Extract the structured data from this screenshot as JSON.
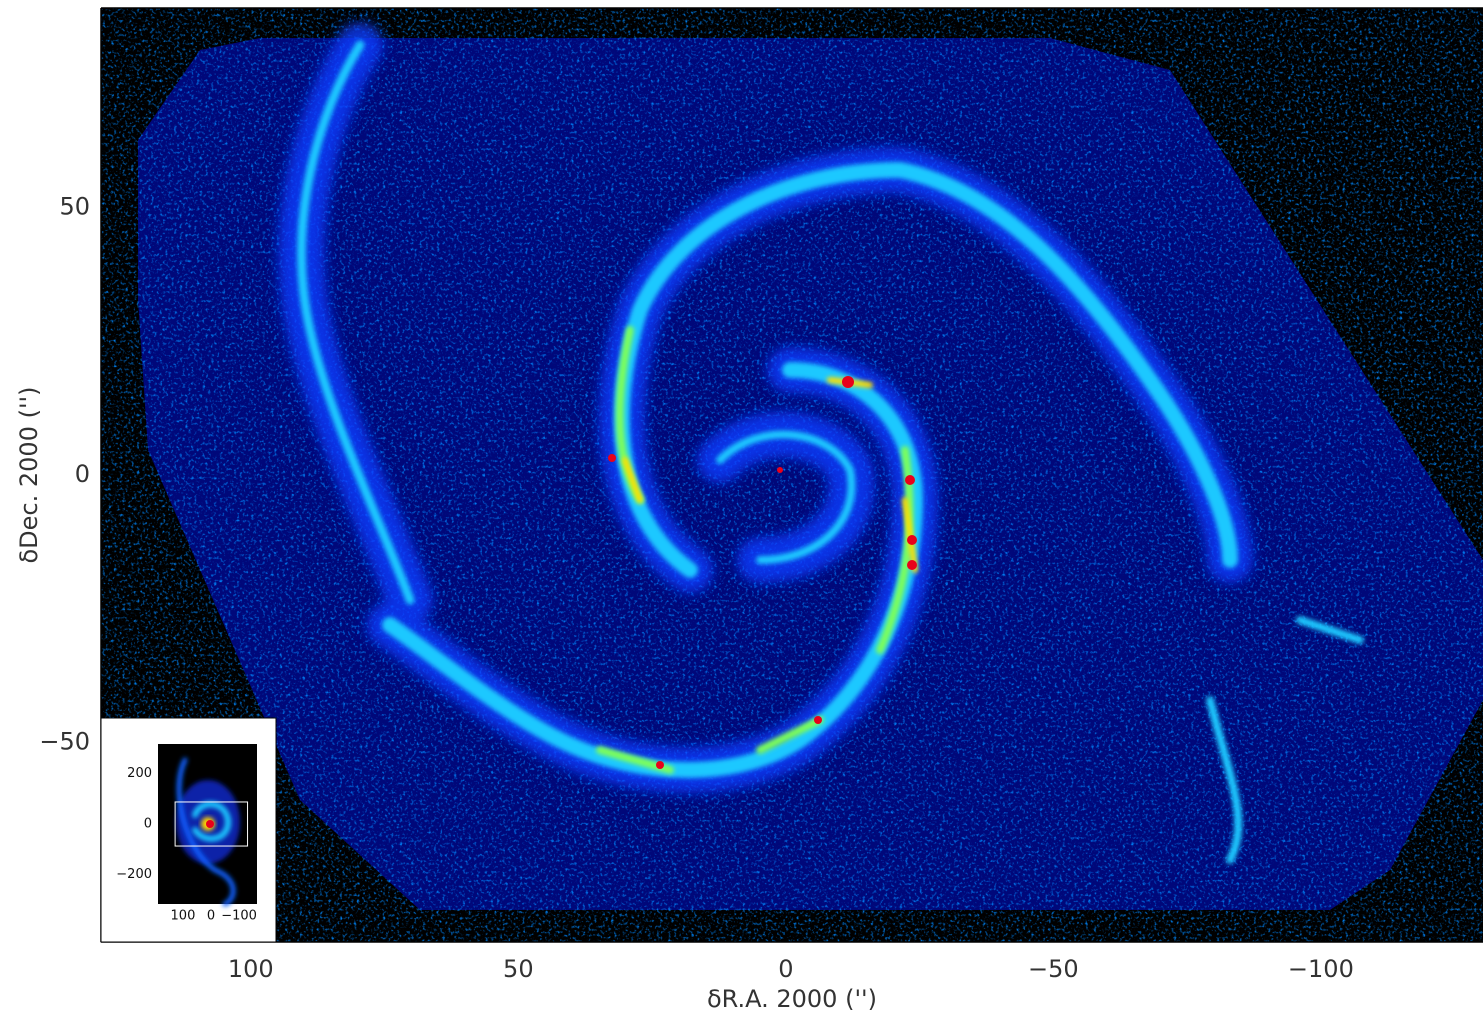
{
  "chart_data": {
    "type": "image",
    "xlabel": "δR.A. 2000 ('')",
    "ylabel": "δDec. 2000 ('')",
    "xlim": [
      128,
      -130.3
    ],
    "ylim": [
      87.3,
      -87.3
    ],
    "xticks": [
      100,
      50,
      0,
      {
        "value": -50,
        "label": "−50"
      },
      {
        "value": -100,
        "label": "−100"
      }
    ],
    "yticks": [
      50,
      0,
      {
        "value": -50,
        "label": "−50"
      }
    ],
    "xtick_marks": [
      120,
      100,
      80,
      60,
      40,
      20,
      0,
      -20,
      -40,
      -60,
      -80,
      -100,
      -120
    ],
    "ytick_marks": [
      80,
      60,
      40,
      20,
      0,
      -20,
      -40,
      -60,
      -80
    ],
    "inset": {
      "xlim": [
        189,
        -164
      ],
      "ylim": [
        317,
        -317
      ],
      "xticks": [
        100,
        0,
        {
          "value": -100,
          "label": "−100"
        }
      ],
      "yticks": [
        200,
        0,
        {
          "value": -200,
          "label": "−200"
        }
      ]
    }
  }
}
